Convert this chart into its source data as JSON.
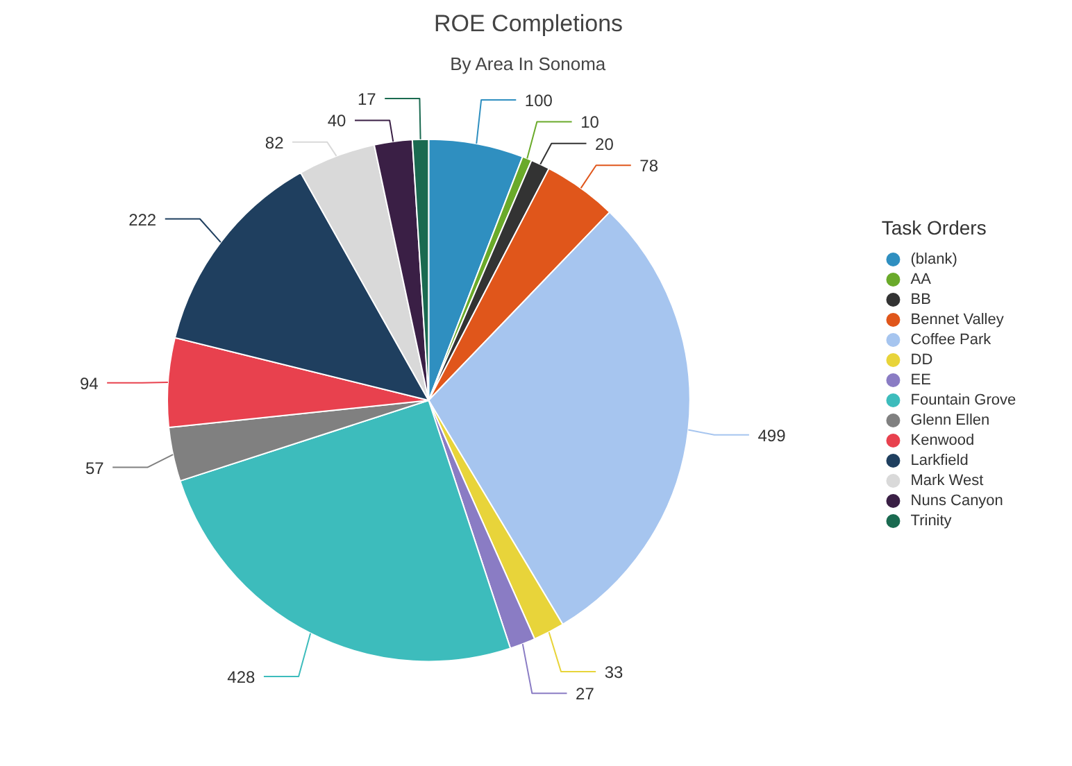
{
  "chart_data": {
    "type": "pie",
    "title": "ROE Completions",
    "subtitle": "By Area In Sonoma",
    "legend_title": "Task Orders",
    "legend": "right",
    "data_labels": true,
    "categories": [
      "(blank)",
      "AA",
      "BB",
      "Bennet Valley",
      "Coffee Park",
      "DD",
      "EE",
      "Fountain Grove",
      "Glenn Ellen",
      "Kenwood",
      "Larkfield",
      "Mark West",
      "Nuns Canyon",
      "Trinity"
    ],
    "values": [
      100,
      10,
      20,
      78,
      499,
      33,
      27,
      428,
      57,
      94,
      222,
      82,
      40,
      17
    ],
    "colors": [
      "#2f8fc0",
      "#6aaa2a",
      "#333333",
      "#e0561b",
      "#a6c5ef",
      "#e8d43a",
      "#8a7cc4",
      "#3dbcbc",
      "#808080",
      "#e8414e",
      "#1f3f5f",
      "#d9d9d9",
      "#3a1f45",
      "#1a6a50"
    ]
  }
}
